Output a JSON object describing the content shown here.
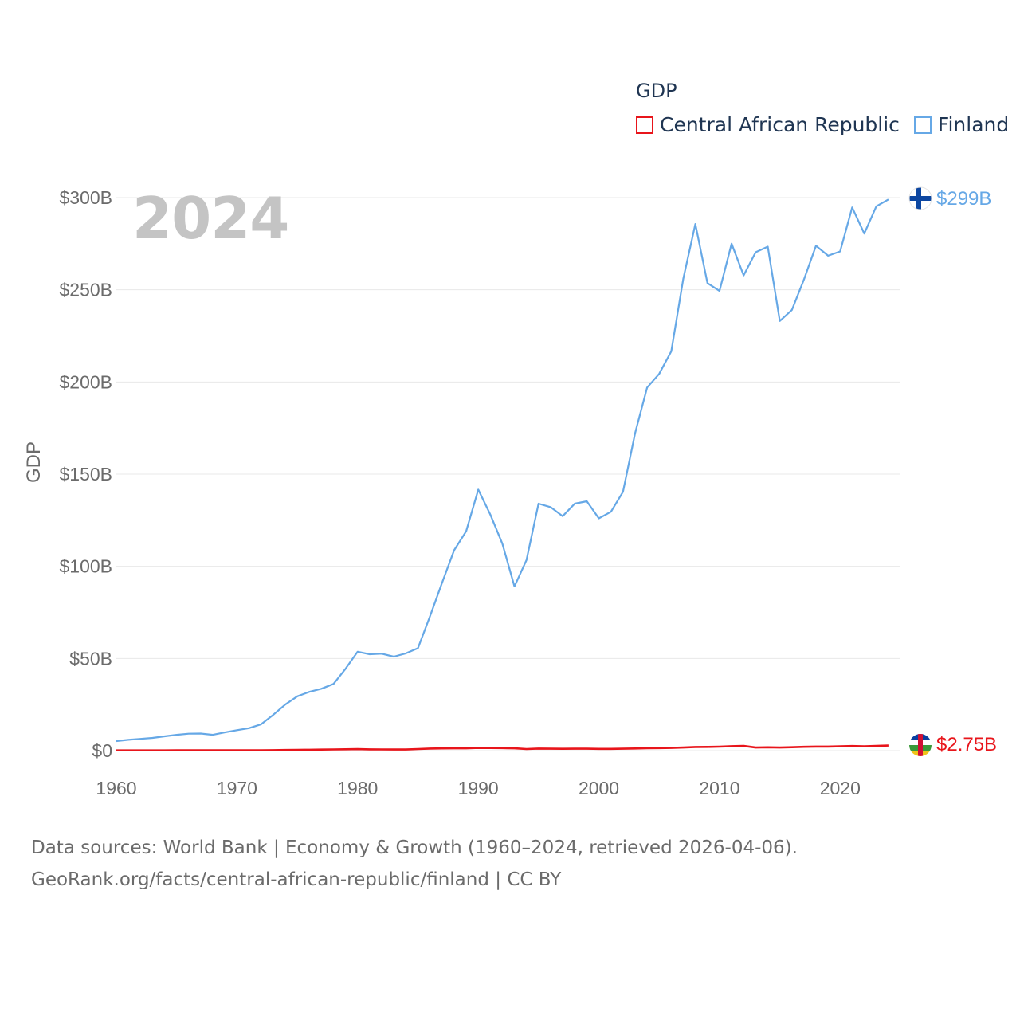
{
  "legend": {
    "title": "GDP",
    "items": [
      {
        "label": "Central African Republic",
        "color": "#e8151b"
      },
      {
        "label": "Finland",
        "color": "#66a8e6"
      }
    ]
  },
  "current_year": "2024",
  "footer": {
    "line1": "Data sources: World Bank | Economy & Growth (1960–2024, retrieved 2026-04-06).",
    "line2": "GeoRank.org/facts/central-african-republic/finland | CC BY"
  },
  "chart_data": {
    "type": "line",
    "title": "GDP",
    "xlabel": "",
    "ylabel": "GDP",
    "xlim": [
      1960,
      2025
    ],
    "ylim": [
      0,
      300
    ],
    "y_unit": "billion USD",
    "x_ticks": [
      "1960",
      "1970",
      "1980",
      "1990",
      "2000",
      "2010",
      "2020"
    ],
    "y_ticks": [
      {
        "value": 0,
        "label": "$0"
      },
      {
        "value": 50,
        "label": "$50B"
      },
      {
        "value": 100,
        "label": "$100B"
      },
      {
        "value": 150,
        "label": "$150B"
      },
      {
        "value": 200,
        "label": "$200B"
      },
      {
        "value": 250,
        "label": "$250B"
      },
      {
        "value": 300,
        "label": "$300B"
      }
    ],
    "grid": true,
    "legend_position": "top-right",
    "x": [
      1960,
      1961,
      1962,
      1963,
      1964,
      1965,
      1966,
      1967,
      1968,
      1969,
      1970,
      1971,
      1972,
      1973,
      1974,
      1975,
      1976,
      1977,
      1978,
      1979,
      1980,
      1981,
      1982,
      1983,
      1984,
      1985,
      1986,
      1987,
      1988,
      1989,
      1990,
      1991,
      1992,
      1993,
      1994,
      1995,
      1996,
      1997,
      1998,
      1999,
      2000,
      2001,
      2002,
      2003,
      2004,
      2005,
      2006,
      2007,
      2008,
      2009,
      2010,
      2011,
      2012,
      2013,
      2014,
      2015,
      2016,
      2017,
      2018,
      2019,
      2020,
      2021,
      2022,
      2023,
      2024
    ],
    "series": [
      {
        "name": "Finland",
        "color": "#66a8e6",
        "end_label": "$299B",
        "values": [
          5.2,
          5.9,
          6.4,
          6.9,
          7.8,
          8.6,
          9.2,
          9.3,
          8.6,
          9.9,
          11.1,
          12.2,
          14.3,
          19.4,
          25.0,
          29.5,
          31.9,
          33.6,
          36.2,
          44.4,
          53.7,
          52.3,
          52.6,
          51.0,
          52.8,
          55.6,
          72.9,
          91.0,
          108.7,
          119.0,
          141.6,
          128.1,
          112.3,
          89.1,
          103.4,
          134.0,
          132.1,
          127.2,
          134.0,
          135.3,
          126.0,
          129.6,
          140.4,
          172.2,
          197.0,
          204.4,
          216.6,
          256.1,
          285.7,
          253.6,
          249.4,
          275.0,
          257.8,
          270.4,
          273.4,
          233.1,
          239.1,
          255.6,
          273.9,
          268.5,
          270.8,
          294.7,
          280.5,
          295.3,
          299.0
        ]
      },
      {
        "name": "Central African Republic",
        "color": "#e8151b",
        "end_label": "$2.75B",
        "values": [
          0.11,
          0.12,
          0.13,
          0.14,
          0.15,
          0.16,
          0.17,
          0.18,
          0.19,
          0.19,
          0.19,
          0.21,
          0.22,
          0.27,
          0.33,
          0.44,
          0.49,
          0.57,
          0.67,
          0.74,
          0.8,
          0.71,
          0.66,
          0.62,
          0.61,
          0.86,
          1.12,
          1.2,
          1.26,
          1.26,
          1.49,
          1.43,
          1.38,
          1.26,
          0.85,
          1.12,
          1.05,
          1.01,
          1.05,
          1.05,
          0.96,
          0.97,
          1.04,
          1.18,
          1.3,
          1.37,
          1.46,
          1.7,
          1.98,
          2.04,
          2.14,
          2.44,
          2.53,
          1.69,
          1.82,
          1.69,
          1.86,
          2.07,
          2.22,
          2.22,
          2.33,
          2.52,
          2.38,
          2.56,
          2.75
        ]
      }
    ]
  }
}
